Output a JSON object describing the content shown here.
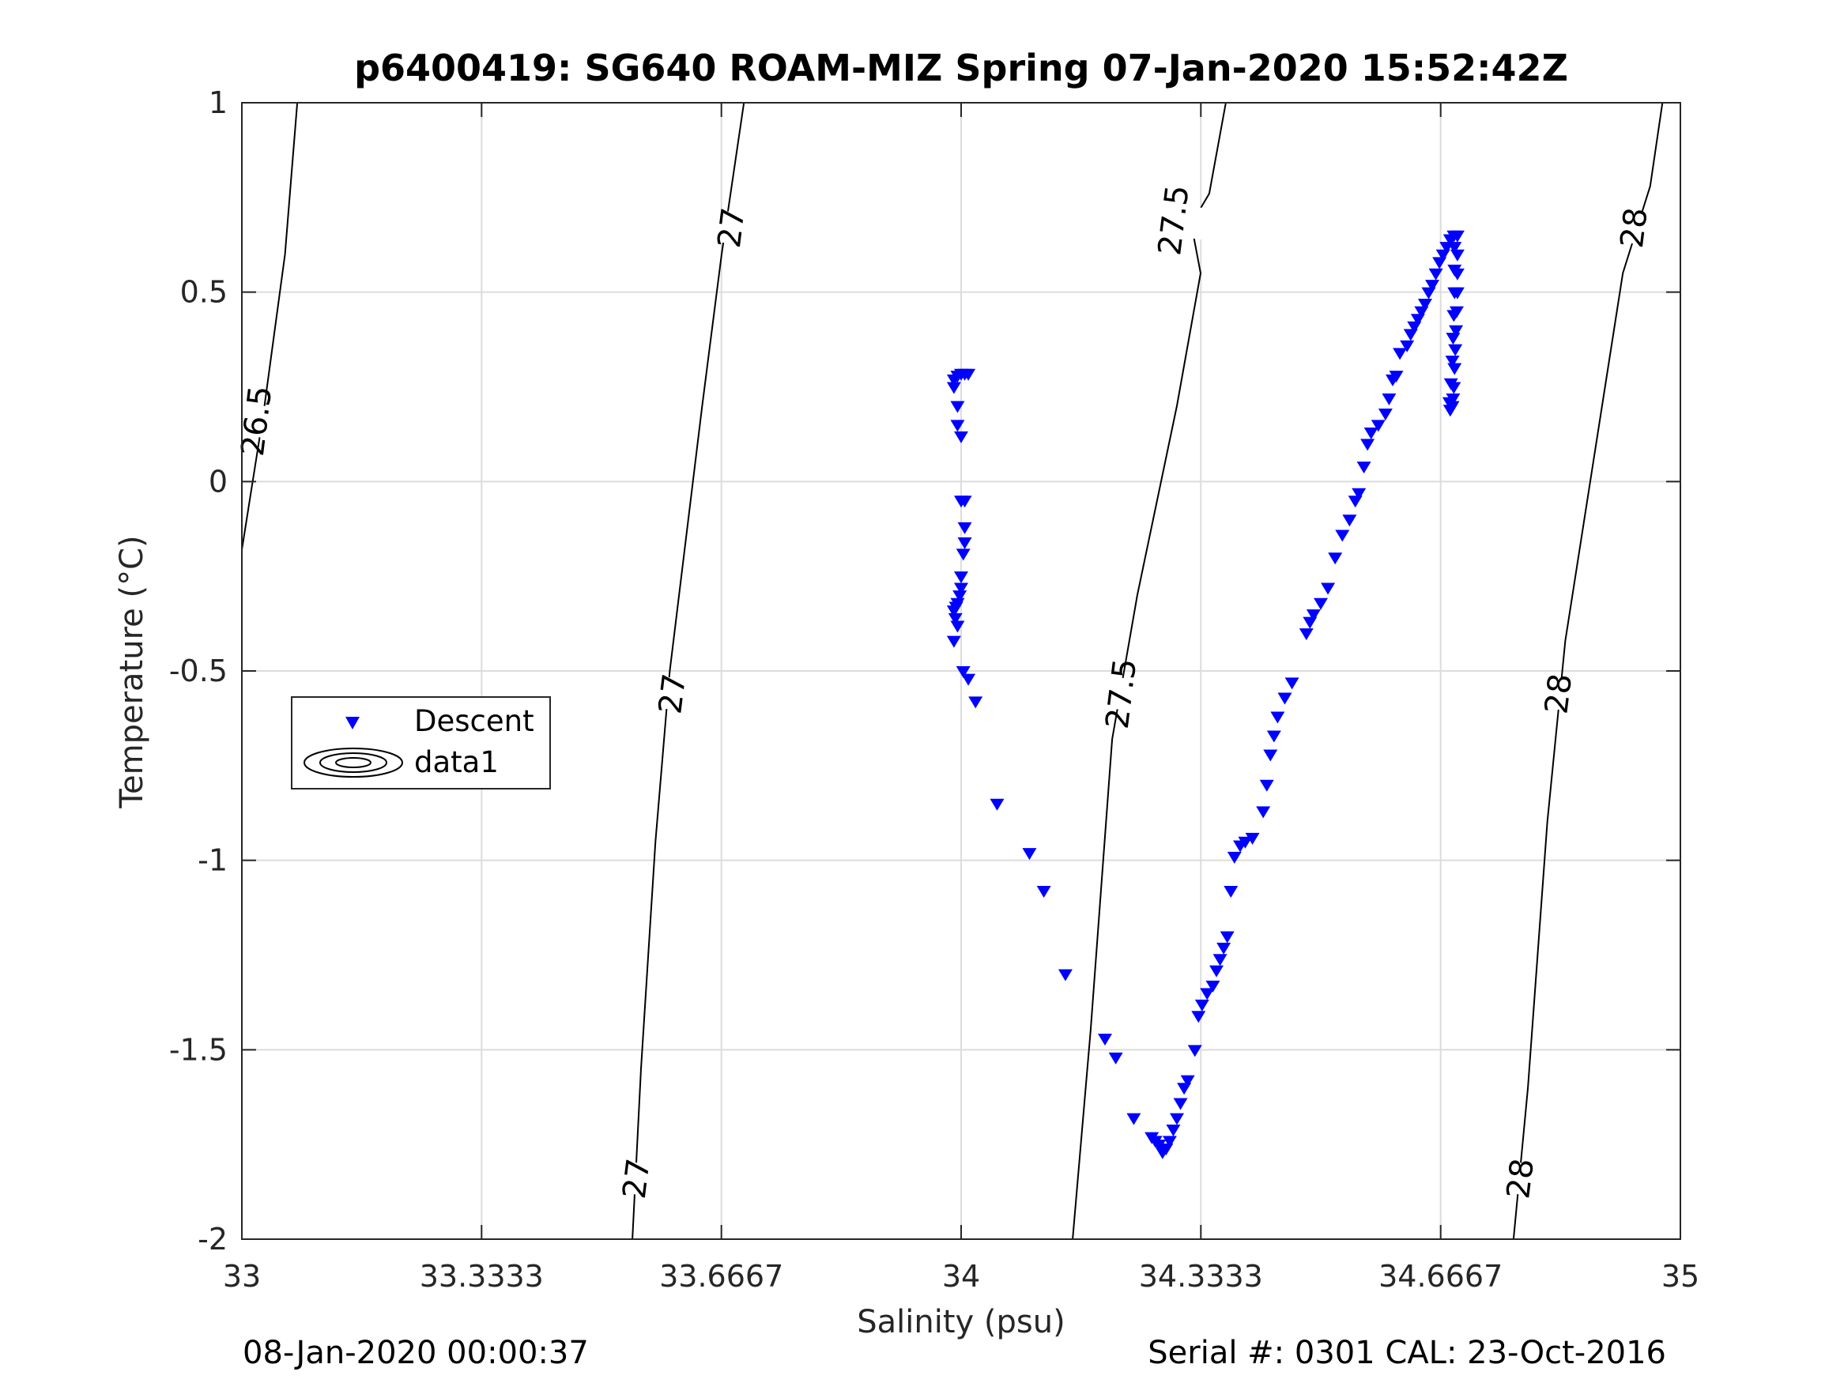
{
  "title": "p6400419: SG640 ROAM-MIZ Spring 07-Jan-2020 15:52:42Z",
  "footer": {
    "left": "08-Jan-2020 00:00:37",
    "right": "Serial #: 0301  CAL: 23-Oct-2016"
  },
  "legend": {
    "placement": "middle-left",
    "entries": [
      "Descent",
      "data1"
    ]
  },
  "colors": {
    "descent": "#0000ff",
    "contour": "#000000",
    "grid": "#dcdcdc"
  },
  "chart_data": {
    "type": "scatter",
    "title": "p6400419: SG640 ROAM-MIZ Spring 07-Jan-2020 15:52:42Z",
    "xlabel": "Salinity (psu)",
    "ylabel": "Temperature (°C)",
    "xlim": [
      33,
      35
    ],
    "ylim": [
      -2,
      1
    ],
    "grid": true,
    "x_ticks": [
      33,
      33.3333,
      33.6667,
      34,
      34.3333,
      34.6667,
      35
    ],
    "x_tick_labels": [
      "33",
      "33.3333",
      "33.6667",
      "34",
      "34.3333",
      "34.6667",
      "35"
    ],
    "y_ticks": [
      1,
      0.5,
      0,
      -0.5,
      -1,
      -1.5,
      -2
    ],
    "y_tick_labels": [
      "1",
      "0.5",
      "0",
      "-0.5",
      "-1",
      "-1.5",
      "-2"
    ],
    "series": [
      {
        "name": "Descent",
        "marker": "triangle-down",
        "color": "#0000ff",
        "points": [
          [
            33.99,
            0.27
          ],
          [
            33.995,
            0.28
          ],
          [
            34.0,
            0.285
          ],
          [
            34.005,
            0.285
          ],
          [
            34.01,
            0.285
          ],
          [
            33.99,
            0.25
          ],
          [
            33.995,
            0.2
          ],
          [
            33.995,
            0.15
          ],
          [
            34.0,
            0.12
          ],
          [
            34.0,
            -0.05
          ],
          [
            34.005,
            -0.05
          ],
          [
            34.005,
            -0.12
          ],
          [
            34.005,
            -0.16
          ],
          [
            34.003,
            -0.19
          ],
          [
            34.0,
            -0.25
          ],
          [
            34.0,
            -0.28
          ],
          [
            33.998,
            -0.3
          ],
          [
            33.995,
            -0.32
          ],
          [
            33.993,
            -0.33
          ],
          [
            33.99,
            -0.34
          ],
          [
            33.992,
            -0.36
          ],
          [
            33.995,
            -0.38
          ],
          [
            33.99,
            -0.42
          ],
          [
            34.003,
            -0.5
          ],
          [
            34.01,
            -0.52
          ],
          [
            34.02,
            -0.58
          ],
          [
            34.05,
            -0.85
          ],
          [
            34.095,
            -0.98
          ],
          [
            34.115,
            -1.08
          ],
          [
            34.145,
            -1.3
          ],
          [
            34.2,
            -1.47
          ],
          [
            34.215,
            -1.52
          ],
          [
            34.24,
            -1.68
          ],
          [
            34.265,
            -1.73
          ],
          [
            34.27,
            -1.74
          ],
          [
            34.275,
            -1.75
          ],
          [
            34.28,
            -1.77
          ],
          [
            34.285,
            -1.76
          ],
          [
            34.29,
            -1.74
          ],
          [
            34.295,
            -1.71
          ],
          [
            34.3,
            -1.68
          ],
          [
            34.305,
            -1.64
          ],
          [
            34.31,
            -1.6
          ],
          [
            34.315,
            -1.58
          ],
          [
            34.325,
            -1.5
          ],
          [
            34.33,
            -1.41
          ],
          [
            34.335,
            -1.38
          ],
          [
            34.342,
            -1.35
          ],
          [
            34.35,
            -1.33
          ],
          [
            34.355,
            -1.29
          ],
          [
            34.36,
            -1.26
          ],
          [
            34.365,
            -1.23
          ],
          [
            34.37,
            -1.2
          ],
          [
            34.375,
            -1.08
          ],
          [
            34.38,
            -0.99
          ],
          [
            34.388,
            -0.96
          ],
          [
            34.395,
            -0.95
          ],
          [
            34.405,
            -0.94
          ],
          [
            34.42,
            -0.87
          ],
          [
            34.425,
            -0.8
          ],
          [
            34.43,
            -0.72
          ],
          [
            34.435,
            -0.67
          ],
          [
            34.44,
            -0.62
          ],
          [
            34.45,
            -0.57
          ],
          [
            34.46,
            -0.53
          ],
          [
            34.48,
            -0.4
          ],
          [
            34.485,
            -0.37
          ],
          [
            34.49,
            -0.35
          ],
          [
            34.5,
            -0.32
          ],
          [
            34.51,
            -0.28
          ],
          [
            34.52,
            -0.2
          ],
          [
            34.53,
            -0.14
          ],
          [
            34.54,
            -0.1
          ],
          [
            34.548,
            -0.05
          ],
          [
            34.553,
            -0.03
          ],
          [
            34.56,
            0.04
          ],
          [
            34.565,
            0.1
          ],
          [
            34.57,
            0.13
          ],
          [
            34.58,
            0.15
          ],
          [
            34.59,
            0.18
          ],
          [
            34.595,
            0.22
          ],
          [
            34.6,
            0.27
          ],
          [
            34.605,
            0.28
          ],
          [
            34.61,
            0.34
          ],
          [
            34.62,
            0.36
          ],
          [
            34.625,
            0.39
          ],
          [
            34.63,
            0.41
          ],
          [
            34.635,
            0.43
          ],
          [
            34.64,
            0.45
          ],
          [
            34.645,
            0.47
          ],
          [
            34.65,
            0.5
          ],
          [
            34.655,
            0.52
          ],
          [
            34.66,
            0.55
          ],
          [
            34.665,
            0.58
          ],
          [
            34.67,
            0.6
          ],
          [
            34.675,
            0.62
          ],
          [
            34.68,
            0.64
          ],
          [
            34.685,
            0.65
          ],
          [
            34.69,
            0.65
          ],
          [
            34.69,
            0.6
          ],
          [
            34.69,
            0.55
          ],
          [
            34.69,
            0.5
          ],
          [
            34.689,
            0.45
          ],
          [
            34.688,
            0.4
          ],
          [
            34.687,
            0.35
          ],
          [
            34.686,
            0.3
          ],
          [
            34.685,
            0.25
          ],
          [
            34.684,
            0.22
          ],
          [
            34.683,
            0.2
          ],
          [
            34.68,
            0.19
          ],
          [
            34.679,
            0.21
          ],
          [
            34.681,
            0.26
          ],
          [
            34.683,
            0.32
          ],
          [
            34.684,
            0.38
          ],
          [
            34.685,
            0.44
          ],
          [
            34.686,
            0.5
          ],
          [
            34.686,
            0.56
          ],
          [
            34.686,
            0.62
          ]
        ]
      }
    ],
    "contours": {
      "name": "data1",
      "levels": [
        {
          "level": "26.5",
          "path": [
            [
              33.0,
              -0.18
            ],
            [
              33.03,
              0.18
            ],
            [
              33.06,
              0.6
            ],
            [
              33.077,
              1.0
            ]
          ],
          "labels": [
            {
              "x": 33.02,
              "y": 0.16
            }
          ]
        },
        {
          "level": "27",
          "path": [
            [
              33.543,
              -2.0
            ],
            [
              33.555,
              -1.55
            ],
            [
              33.575,
              -0.95
            ],
            [
              33.595,
              -0.5
            ],
            [
              33.64,
              0.2
            ],
            [
              33.667,
              0.6
            ],
            [
              33.698,
              1.0
            ]
          ],
          "labels": [
            {
              "x": 33.548,
              "y": -1.84
            },
            {
              "x": 33.598,
              "y": -0.56
            },
            {
              "x": 33.68,
              "y": 0.67
            }
          ]
        },
        {
          "level": "27.5",
          "path": [
            [
              34.155,
              -2.0
            ],
            [
              34.18,
              -1.45
            ],
            [
              34.21,
              -0.68
            ],
            [
              34.245,
              -0.3
            ],
            [
              34.3,
              0.2
            ],
            [
              34.333,
              0.55
            ],
            [
              34.32,
              0.68
            ],
            [
              34.345,
              0.76
            ],
            [
              34.368,
              1.0
            ]
          ],
          "labels": [
            {
              "x": 34.222,
              "y": -0.56
            },
            {
              "x": 34.295,
              "y": 0.69
            }
          ]
        },
        {
          "level": "28",
          "path": [
            [
              34.768,
              -2.0
            ],
            [
              34.788,
              -1.6
            ],
            [
              34.815,
              -0.9
            ],
            [
              34.84,
              -0.42
            ],
            [
              34.92,
              0.55
            ],
            [
              34.958,
              0.78
            ],
            [
              34.975,
              1.0
            ]
          ],
          "labels": [
            {
              "x": 34.777,
              "y": -1.84
            },
            {
              "x": 34.83,
              "y": -0.56
            },
            {
              "x": 34.935,
              "y": 0.67
            }
          ]
        }
      ]
    }
  }
}
